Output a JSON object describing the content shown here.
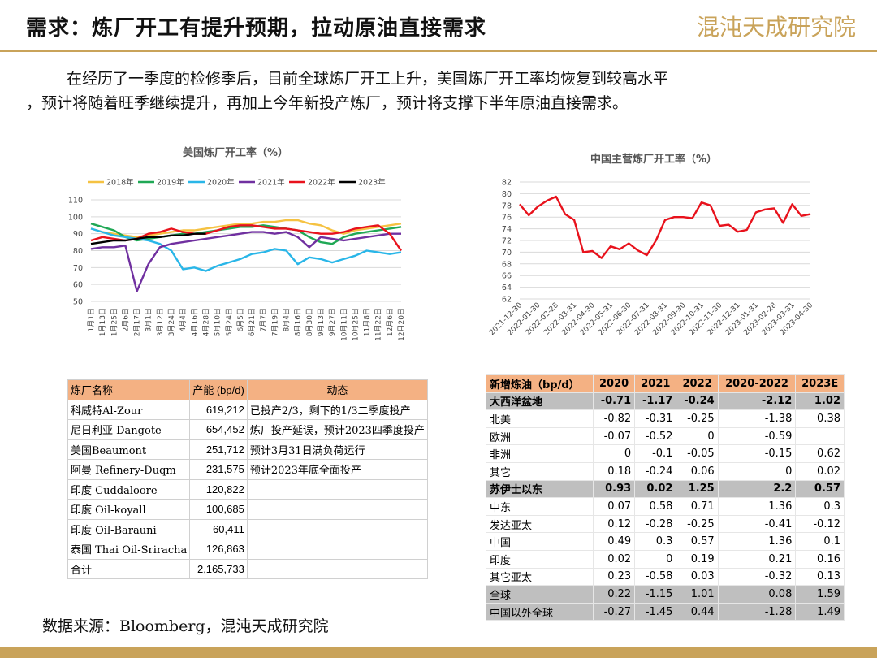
{
  "header": {
    "title": "需求：炼厂开工有提升预期，拉动原油直接需求",
    "logo": "混沌天成研究院"
  },
  "body": [
    "在经历了一季度的检修季后，目前全球炼厂开工上升，美国炼厂开工率均恢复到较高水平",
    "，预计将随着旺季继续提升，再加上今年新投产炼厂，预计将支撑下半年原油直接需求。"
  ],
  "chart_data": [
    {
      "type": "line",
      "title": "美国炼厂开工率（%）",
      "categories": [
        "1月1日",
        "1月13日",
        "1月25日",
        "2月6日",
        "2月17日",
        "3月1日",
        "3月12日",
        "3月24日",
        "4月4日",
        "4月16日",
        "4月28日",
        "5月10日",
        "5月24日",
        "6月5日",
        "6月21日",
        "7月7日",
        "7月19日",
        "8月4日",
        "8月16日",
        "8月30日",
        "9月13日",
        "9月27日",
        "10月11日",
        "10月25日",
        "11月8日",
        "11月22日",
        "12月6日",
        "12月20日"
      ],
      "series": [
        {
          "name": "2018年",
          "color": "#f5c242",
          "values": [
            93,
            91,
            90,
            89,
            88,
            89,
            90,
            91,
            92,
            92,
            93,
            94,
            95,
            96,
            96,
            97,
            97,
            98,
            98,
            96,
            95,
            92,
            90,
            92,
            93,
            94,
            95,
            96
          ]
        },
        {
          "name": "2019年",
          "color": "#1fa855",
          "values": [
            96,
            94,
            92,
            88,
            86,
            87,
            88,
            89,
            90,
            90,
            91,
            92,
            93,
            94,
            94,
            95,
            94,
            93,
            92,
            88,
            85,
            84,
            88,
            90,
            91,
            92,
            93,
            94
          ]
        },
        {
          "name": "2020年",
          "color": "#29b6e8",
          "values": [
            93,
            91,
            89,
            88,
            87,
            86,
            84,
            80,
            69,
            70,
            68,
            71,
            73,
            75,
            78,
            79,
            81,
            80,
            72,
            76,
            75,
            73,
            75,
            77,
            80,
            79,
            78,
            79
          ]
        },
        {
          "name": "2021年",
          "color": "#7030a0",
          "values": [
            81,
            82,
            82,
            83,
            56,
            72,
            82,
            84,
            85,
            86,
            87,
            88,
            89,
            90,
            91,
            91,
            90,
            91,
            88,
            82,
            88,
            87,
            86,
            87,
            88,
            89,
            90,
            90
          ]
        },
        {
          "name": "2022年",
          "color": "#e8121c",
          "values": [
            86,
            88,
            87,
            86,
            87,
            90,
            91,
            93,
            91,
            90,
            90,
            92,
            94,
            95,
            95,
            94,
            93,
            93,
            92,
            91,
            90,
            90,
            91,
            93,
            94,
            95,
            90,
            80
          ]
        },
        {
          "name": "2023年",
          "color": "#000000",
          "values": [
            84,
            85,
            86,
            86,
            87,
            88,
            88,
            89,
            89,
            90,
            90,
            null,
            null,
            null,
            null,
            null,
            null,
            null,
            null,
            null,
            null,
            null,
            null,
            null,
            null,
            null,
            null,
            null
          ]
        }
      ],
      "ylim": [
        50,
        110
      ],
      "yticks": [
        50,
        60,
        70,
        80,
        90,
        100,
        110
      ],
      "grid": true
    },
    {
      "type": "line",
      "title": "中国主营炼厂开工率（%）",
      "categories": [
        "2021-12-30",
        null,
        "2022-01-30",
        null,
        "2022-02-28",
        null,
        "2022-03-31",
        null,
        "2022-04-30",
        null,
        "2022-05-31",
        null,
        "2022-06-30",
        null,
        "2022-07-31",
        null,
        "2022-08-31",
        null,
        "2022-09-30",
        null,
        "2022-10-31",
        null,
        "2022-11-30",
        null,
        "2022-12-31",
        null,
        "2023-01-31",
        null,
        "2023-02-28",
        null,
        "2023-03-31",
        null,
        "2023-04-30"
      ],
      "values": [
        78.2,
        76.3,
        77.8,
        78.8,
        79.5,
        76.5,
        75.5,
        70,
        70.2,
        69,
        71,
        70.5,
        71.5,
        70.3,
        69.5,
        72,
        75.5,
        76,
        76,
        75.8,
        78.5,
        78,
        74.5,
        74.7,
        73.5,
        73.8,
        76.8,
        77.3,
        77.5,
        75,
        78.2,
        76.2,
        76.5
      ],
      "color": "#e8121c",
      "ylim": [
        62,
        82
      ],
      "yticks": [
        62,
        64,
        66,
        68,
        70,
        72,
        74,
        76,
        78,
        80,
        82
      ],
      "grid": true
    }
  ],
  "tables": [
    {
      "header": [
        "炼厂名称",
        "产能 (bp/d)",
        "动态"
      ],
      "rows": [
        [
          "科威特Al-Zour",
          "619,212",
          "已投产2/3，剩下的1/3二季度投产"
        ],
        [
          "尼日利亚 Dangote",
          "654,452",
          "炼厂投产延误，预计2023四季度投产"
        ],
        [
          "美国Beaumont",
          "251,712",
          "预计3月31日满负荷运行"
        ],
        [
          "阿曼 Refinery-Duqm",
          "231,575",
          "预计2023年底全面投产"
        ],
        [
          "印度 Cuddaloore",
          "120,822",
          null
        ],
        [
          "印度 Oil-koyall",
          "100,685",
          null
        ],
        [
          "印度 Oil-Barauni",
          "60,411",
          null
        ],
        [
          "泰国 Thai Oil-Sriracha",
          "126,863",
          null
        ],
        [
          "合计",
          "2,165,733",
          null
        ]
      ]
    },
    {
      "header": [
        "新增炼油（bp/d）",
        "2020",
        "2021",
        "2022",
        "2020-2022",
        "2023E"
      ],
      "rows": [
        [
          "大西洋盆地",
          "-0.71",
          "-1.17",
          "-0.24",
          "-2.12",
          "1.02"
        ],
        [
          "北美",
          "-0.82",
          "-0.31",
          "-0.25",
          "-1.38",
          "0.38"
        ],
        [
          "欧洲",
          "-0.07",
          "-0.52",
          "0",
          "-0.59",
          null
        ],
        [
          "非洲",
          "0",
          "-0.1",
          "-0.05",
          "-0.15",
          "0.62"
        ],
        [
          "其它",
          "0.18",
          "-0.24",
          "0.06",
          "0",
          "0.02"
        ],
        [
          "苏伊士以东",
          "0.93",
          "0.02",
          "1.25",
          "2.2",
          "0.57"
        ],
        [
          "中东",
          "0.07",
          "0.58",
          "0.71",
          "1.36",
          "0.3"
        ],
        [
          "发达亚太",
          "0.12",
          "-0.28",
          "-0.25",
          "-0.41",
          "-0.12"
        ],
        [
          "中国",
          "0.49",
          "0.3",
          "0.57",
          "1.36",
          "0.1"
        ],
        [
          "印度",
          "0.02",
          "0",
          "0.19",
          "0.21",
          "0.16"
        ],
        [
          "其它亚太",
          "0.23",
          "-0.58",
          "0.03",
          "-0.32",
          "0.13"
        ],
        [
          "全球",
          "0.22",
          "-1.15",
          "1.01",
          "0.08",
          "1.59"
        ],
        [
          "中国以外全球",
          "-0.27",
          "-1.45",
          "0.44",
          "-1.28",
          "1.49"
        ]
      ]
    }
  ],
  "source": "数据来源：Bloomberg，混沌天成研究院"
}
